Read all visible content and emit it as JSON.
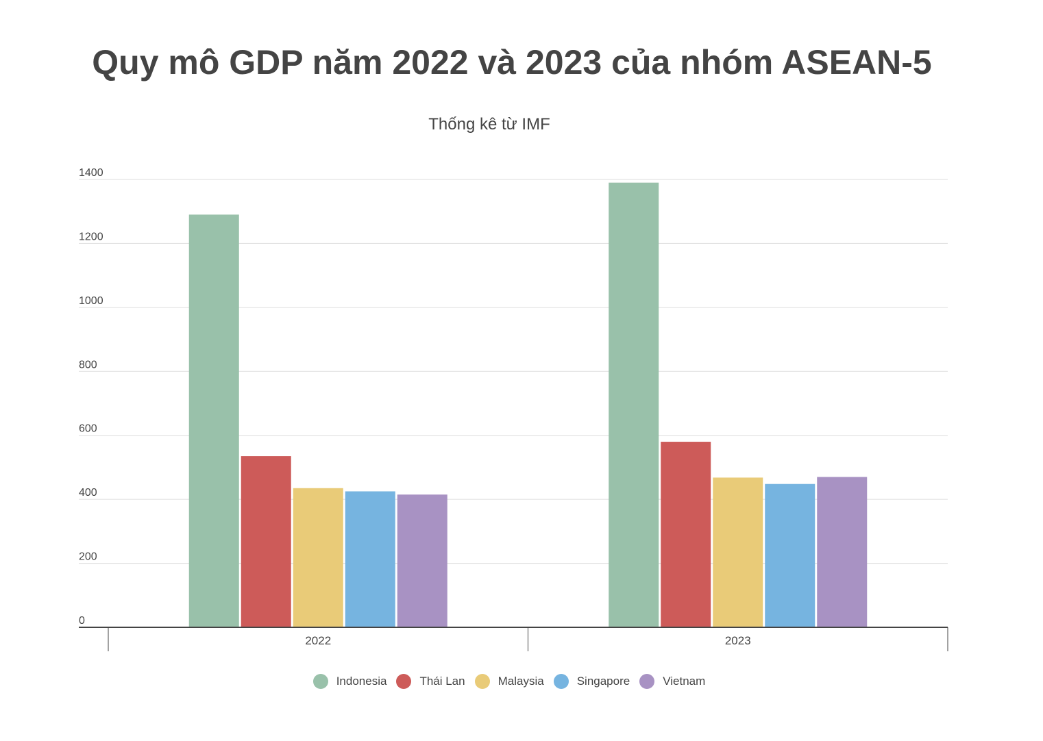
{
  "chart_data": {
    "type": "bar",
    "title": "Quy mô GDP năm 2022 và 2023 của nhóm ASEAN-5",
    "subtitle": "Thống kê từ IMF",
    "xlabel": "",
    "ylabel": "",
    "ylim": [
      0,
      1400
    ],
    "yticks": [
      0,
      200,
      400,
      600,
      800,
      1000,
      1200,
      1400
    ],
    "grid": true,
    "legend_position": "bottom",
    "categories": [
      "2022",
      "2023"
    ],
    "series": [
      {
        "name": "Indonesia",
        "color": "#99c1aa",
        "values": [
          1290,
          1390
        ]
      },
      {
        "name": "Thái Lan",
        "color": "#cd5b59",
        "values": [
          535,
          580
        ]
      },
      {
        "name": "Malaysia",
        "color": "#e9cb78",
        "values": [
          435,
          468
        ]
      },
      {
        "name": "Singapore",
        "color": "#76b4e0",
        "values": [
          425,
          448
        ]
      },
      {
        "name": "Vietnam",
        "color": "#a892c3",
        "values": [
          415,
          470
        ]
      }
    ]
  }
}
